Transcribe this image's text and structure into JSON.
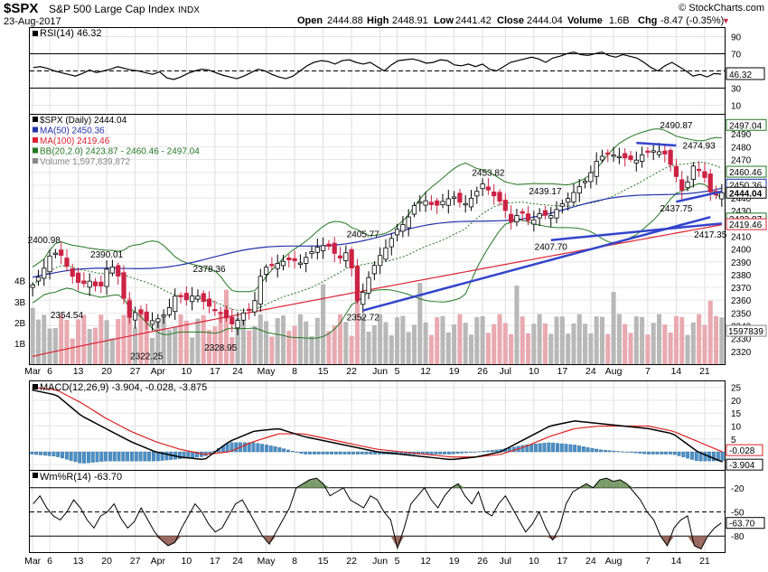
{
  "header": {
    "symbol": "$SPX",
    "name": "S&P 500 Large Cap Index",
    "exchange": "INDX",
    "date": "23-Aug-2017",
    "copyright": "© StockCharts.com",
    "open_label": "Open",
    "open": "2444.88",
    "high_label": "High",
    "high": "2448.91",
    "low_label": "Low",
    "low": "2441.42",
    "close_label": "Close",
    "close": "2444.04",
    "volume_label": "Volume",
    "volume": "1.6B",
    "chg_label": "Chg",
    "chg": "-8.47 (-0.35%)",
    "chg_arrow": "▼"
  },
  "colors": {
    "up": "#ffffff",
    "down": "#cc2244",
    "ma50": "#2233aa",
    "ma100": "#dd2233",
    "bb": "#227722",
    "trend": "#3344cc",
    "vol_up": "#b8b8b8",
    "vol_down": "#e8aab0",
    "macd_line": "#000000",
    "macd_signal": "#dd2222",
    "macd_hist": "#4a90c8",
    "willr": "#000000",
    "willr_high_fill": "#7a9a6a",
    "willr_low_fill": "#9a6a60"
  },
  "chart_data": [
    {
      "type": "line",
      "title": "RSI(14) 46.32",
      "indicator": "RSI",
      "last_value": "46.32",
      "ylim": [
        0,
        100
      ],
      "ticks": [
        "90",
        "70",
        "50",
        "30",
        "10"
      ],
      "tick_values": [
        90,
        70,
        50,
        30,
        10
      ],
      "reference_lines": [
        70,
        50,
        30
      ],
      "values": [
        54,
        55,
        53,
        50,
        48,
        46,
        44,
        47,
        51,
        48,
        50,
        52,
        55,
        53,
        51,
        50,
        48,
        46,
        49,
        42,
        40,
        43,
        47,
        50,
        52,
        51,
        48,
        45,
        43,
        41,
        44,
        48,
        52,
        50,
        46,
        43,
        41,
        44,
        50,
        56,
        60,
        62,
        61,
        58,
        62,
        63,
        60,
        58,
        60,
        55,
        50,
        57,
        62,
        63,
        64,
        62,
        59,
        60,
        63,
        62,
        57,
        56,
        58,
        55,
        58,
        52,
        50,
        55,
        60,
        62,
        64,
        66,
        64,
        60,
        65,
        67,
        70,
        72,
        69,
        68,
        70,
        72,
        68,
        66,
        69,
        67,
        65,
        60,
        54,
        50,
        56,
        60,
        55,
        50,
        44,
        46,
        43,
        47,
        46.32
      ]
    },
    {
      "type": "candlestick",
      "title": "$SPX (Daily) 2444.04",
      "ylim": [
        2310,
        2505
      ],
      "ticks": [
        "2490",
        "2480",
        "2470",
        "2460",
        "2450",
        "2440",
        "2430",
        "2420",
        "2410",
        "2400",
        "2390",
        "2380",
        "2370",
        "2360",
        "2350",
        "2340",
        "2330",
        "2320"
      ],
      "tick_values": [
        2490,
        2480,
        2470,
        2460,
        2450,
        2440,
        2430,
        2420,
        2410,
        2400,
        2390,
        2380,
        2370,
        2360,
        2350,
        2340,
        2330,
        2320
      ],
      "x_ticks": [
        "Mar",
        "6",
        "13",
        "20",
        "27",
        "Apr",
        "10",
        "17",
        "24",
        "May",
        "8",
        "15",
        "22",
        "Jun",
        "5",
        "12",
        "19",
        "26",
        "Jul",
        "10",
        "17",
        "24",
        "Aug",
        "7",
        "14",
        "21"
      ],
      "x_tick_index": [
        0,
        3,
        8,
        13,
        18,
        22,
        27,
        32,
        36,
        41,
        46,
        51,
        56,
        61,
        64,
        69,
        74,
        79,
        83,
        88,
        93,
        98,
        102,
        108,
        113,
        118
      ],
      "n": 122,
      "close_anchors": [
        [
          0,
          2372
        ],
        [
          2,
          2382
        ],
        [
          4,
          2398
        ],
        [
          6,
          2395
        ],
        [
          8,
          2380
        ],
        [
          10,
          2372
        ],
        [
          12,
          2375
        ],
        [
          14,
          2368
        ],
        [
          16,
          2390
        ],
        [
          18,
          2378
        ],
        [
          20,
          2346
        ],
        [
          22,
          2352
        ],
        [
          24,
          2343
        ],
        [
          26,
          2345
        ],
        [
          28,
          2350
        ],
        [
          30,
          2365
        ],
        [
          32,
          2360
        ],
        [
          34,
          2365
        ],
        [
          36,
          2358
        ],
        [
          38,
          2352
        ],
        [
          40,
          2348
        ],
        [
          42,
          2340
        ],
        [
          44,
          2350
        ],
        [
          46,
          2353
        ],
        [
          48,
          2385
        ],
        [
          50,
          2387
        ],
        [
          52,
          2390
        ],
        [
          54,
          2392
        ],
        [
          56,
          2389
        ],
        [
          58,
          2397
        ],
        [
          60,
          2403
        ],
        [
          62,
          2402
        ],
        [
          64,
          2392
        ],
        [
          66,
          2399
        ],
        [
          68,
          2356
        ],
        [
          70,
          2376
        ],
        [
          72,
          2392
        ],
        [
          74,
          2402
        ],
        [
          76,
          2415
        ],
        [
          78,
          2421
        ],
        [
          80,
          2436
        ],
        [
          82,
          2438
        ],
        [
          84,
          2433
        ],
        [
          86,
          2438
        ],
        [
          88,
          2441
        ],
        [
          90,
          2434
        ],
        [
          92,
          2441
        ],
        [
          94,
          2451
        ],
        [
          96,
          2443
        ],
        [
          98,
          2436
        ],
        [
          100,
          2421
        ],
        [
          102,
          2430
        ],
        [
          104,
          2420
        ],
        [
          106,
          2428
        ],
        [
          108,
          2425
        ],
        [
          110,
          2433
        ],
        [
          112,
          2440
        ],
        [
          114,
          2448
        ],
        [
          116,
          2455
        ],
        [
          118,
          2470
        ],
        [
          120,
          2475
        ],
        [
          122,
          2473
        ],
        [
          124,
          2471
        ],
        [
          126,
          2469
        ],
        [
          128,
          2476
        ],
        [
          130,
          2477
        ],
        [
          132,
          2475
        ],
        [
          134,
          2461
        ],
        [
          136,
          2443
        ],
        [
          138,
          2465
        ],
        [
          140,
          2460
        ],
        [
          142,
          2441
        ],
        [
          144,
          2444.04
        ]
      ],
      "anchor_scale": 144,
      "annotations": [
        {
          "label": "2400.98",
          "i": 2,
          "v": 2400.98,
          "pos": "above"
        },
        {
          "label": "2390.01",
          "i": 13,
          "v": 2390.01,
          "pos": "above"
        },
        {
          "label": "2354.54",
          "i": 6,
          "v": 2354.54,
          "pos": "below"
        },
        {
          "label": "2322.25",
          "i": 20,
          "v": 2322.25,
          "pos": "below"
        },
        {
          "label": "2378.36",
          "i": 31,
          "v": 2378.36,
          "pos": "above"
        },
        {
          "label": "2328.95",
          "i": 33,
          "v": 2328.95,
          "pos": "below"
        },
        {
          "label": "2405.77",
          "i": 58,
          "v": 2405.77,
          "pos": "above"
        },
        {
          "label": "2352.72",
          "i": 58,
          "v": 2352.72,
          "pos": "below"
        },
        {
          "label": "2453.82",
          "i": 80,
          "v": 2453.82,
          "pos": "above"
        },
        {
          "label": "2439.17",
          "i": 90,
          "v": 2439.17,
          "pos": "above"
        },
        {
          "label": "2407.70",
          "i": 91,
          "v": 2407.7,
          "pos": "below"
        },
        {
          "label": "2490.87",
          "i": 113,
          "v": 2490.87,
          "pos": "above"
        },
        {
          "label": "2474.93",
          "i": 117,
          "v": 2474.93,
          "pos": "above"
        },
        {
          "label": "2437.75",
          "i": 113,
          "v": 2437.75,
          "pos": "below"
        },
        {
          "label": "2417.35",
          "i": 119,
          "v": 2417.35,
          "pos": "below"
        }
      ],
      "legend": [
        {
          "label": "$SPX (Daily) 2444.04",
          "color": "#000000"
        },
        {
          "label": "MA(50) 2450.36",
          "color": "#2233aa"
        },
        {
          "label": "MA(100) 2419.46",
          "color": "#dd2233"
        },
        {
          "label": "BB(20,2.0) 2423.87 - 2460.46 - 2497.04",
          "color": "#227722"
        },
        {
          "label": "Volume 1,597,839,872",
          "color": "#888888"
        }
      ],
      "right_labels": [
        {
          "label": "2497.04",
          "v": 2497.04,
          "color": "#227722"
        },
        {
          "label": "2460.46",
          "v": 2460.46,
          "color": "#227722"
        },
        {
          "label": "2450.36",
          "v": 2450.36,
          "color": "#2233aa"
        },
        {
          "label": "2444.04",
          "v": 2444.04,
          "color": "#000000"
        },
        {
          "label": "2423.87",
          "v": 2423.87,
          "color": "#227722"
        },
        {
          "label": "2419.46",
          "v": 2419.46,
          "color": "#dd2233"
        }
      ],
      "trendlines": [
        {
          "from": [
            58,
            2352
          ],
          "to": [
            119,
            2425
          ]
        },
        {
          "from": [
            91,
            2407
          ],
          "to": [
            121,
            2420
          ]
        },
        {
          "from": [
            106,
            2483
          ],
          "to": [
            113,
            2481
          ]
        },
        {
          "from": [
            113,
            2437
          ],
          "to": [
            121,
            2445
          ]
        }
      ],
      "volume": {
        "ticks": [
          "4B",
          "3B",
          "2B",
          "1B"
        ],
        "tick_values": [
          4,
          3,
          2,
          1
        ],
        "ymax": 5.2,
        "last_label": "1597839",
        "last_value": 1.6
      }
    },
    {
      "type": "line",
      "title": "MACD(12,26,9) -3.904, -0.028, -3.875",
      "indicator": "MACD",
      "macd": "-3.904",
      "signal": "-0.028",
      "hist": "-3.875",
      "ylim": [
        -7,
        27
      ],
      "ticks": [
        "25",
        "20",
        "15",
        "10",
        "5",
        "0",
        "-5"
      ],
      "tick_values": [
        25,
        20,
        15,
        10,
        5,
        0,
        -5
      ],
      "right_labels": [
        {
          "label": "-0.028",
          "v": -0.028,
          "color": "#dd2222"
        },
        {
          "label": "-3.904",
          "v": -3.904,
          "color": "#000000"
        }
      ],
      "macd_anchors": [
        [
          0,
          24
        ],
        [
          6,
          22
        ],
        [
          12,
          14
        ],
        [
          18,
          9
        ],
        [
          24,
          4
        ],
        [
          30,
          0
        ],
        [
          36,
          -2
        ],
        [
          42,
          -3
        ],
        [
          48,
          4
        ],
        [
          54,
          8
        ],
        [
          60,
          9
        ],
        [
          66,
          6
        ],
        [
          72,
          4
        ],
        [
          78,
          2
        ],
        [
          84,
          0
        ],
        [
          90,
          -1
        ],
        [
          96,
          -2
        ],
        [
          102,
          -3
        ],
        [
          108,
          -2
        ],
        [
          114,
          0
        ],
        [
          120,
          5
        ],
        [
          126,
          10
        ],
        [
          132,
          12
        ],
        [
          138,
          11
        ],
        [
          144,
          10
        ],
        [
          150,
          9
        ],
        [
          156,
          7
        ],
        [
          162,
          0
        ],
        [
          168,
          -3.904
        ]
      ],
      "signal_anchors": [
        [
          0,
          25
        ],
        [
          6,
          24
        ],
        [
          12,
          19
        ],
        [
          18,
          13
        ],
        [
          24,
          8
        ],
        [
          30,
          4
        ],
        [
          36,
          1
        ],
        [
          42,
          -1
        ],
        [
          48,
          0
        ],
        [
          54,
          4
        ],
        [
          60,
          7
        ],
        [
          66,
          7
        ],
        [
          72,
          5
        ],
        [
          78,
          3
        ],
        [
          84,
          1
        ],
        [
          90,
          0
        ],
        [
          96,
          -1
        ],
        [
          102,
          -2
        ],
        [
          108,
          -2
        ],
        [
          114,
          -1
        ],
        [
          120,
          2
        ],
        [
          126,
          6
        ],
        [
          132,
          9
        ],
        [
          138,
          10
        ],
        [
          144,
          10
        ],
        [
          150,
          10
        ],
        [
          156,
          8
        ],
        [
          162,
          4
        ],
        [
          168,
          -0.028
        ]
      ],
      "anchor_scale": 168
    },
    {
      "type": "line",
      "title": "Wm%R(14) -63.70",
      "indicator": "Williams %R",
      "last_value": "-63.70",
      "ylim": [
        -100,
        0
      ],
      "ticks": [
        "-20",
        "-50",
        "-80"
      ],
      "tick_values": [
        -20,
        -50,
        -80
      ],
      "right_labels": [
        {
          "label": "-63.70",
          "v": -63.7,
          "color": "#000000"
        }
      ],
      "values": [
        -40,
        -30,
        -45,
        -55,
        -60,
        -50,
        -35,
        -45,
        -60,
        -70,
        -55,
        -50,
        -40,
        -58,
        -70,
        -62,
        -45,
        -60,
        -75,
        -85,
        -92,
        -88,
        -70,
        -55,
        -40,
        -50,
        -65,
        -75,
        -70,
        -55,
        -40,
        -35,
        -50,
        -65,
        -80,
        -90,
        -75,
        -60,
        -45,
        -20,
        -15,
        -10,
        -8,
        -15,
        -30,
        -25,
        -20,
        -35,
        -40,
        -45,
        -30,
        -35,
        -50,
        -60,
        -95,
        -70,
        -40,
        -30,
        -20,
        -35,
        -45,
        -30,
        -20,
        -15,
        -30,
        -40,
        -25,
        -50,
        -55,
        -40,
        -30,
        -45,
        -60,
        -75,
        -65,
        -50,
        -70,
        -85,
        -70,
        -40,
        -25,
        -20,
        -15,
        -20,
        -10,
        -8,
        -12,
        -10,
        -15,
        -25,
        -35,
        -50,
        -60,
        -80,
        -92,
        -70,
        -60,
        -55,
        -92,
        -96,
        -80,
        -70,
        -63.7
      ]
    }
  ]
}
